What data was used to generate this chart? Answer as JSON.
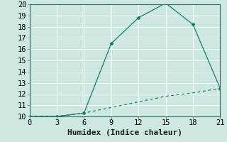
{
  "title": "",
  "xlabel": "Humidex (Indice chaleur)",
  "bg_color": "#cce8e0",
  "grid_color": "#ffffff",
  "line_color": "#1a7a6e",
  "x_solid": [
    0,
    3,
    6,
    9,
    12,
    15,
    18,
    21
  ],
  "y_solid": [
    10,
    10,
    10.3,
    16.5,
    18.8,
    20.1,
    18.2,
    12.5
  ],
  "x_dashed": [
    0,
    3,
    6,
    9,
    12,
    15,
    18,
    21
  ],
  "y_dashed": [
    10,
    10,
    10.3,
    10.8,
    11.3,
    11.8,
    12.1,
    12.5
  ],
  "xlim": [
    0,
    21
  ],
  "ylim": [
    10,
    20
  ],
  "xticks": [
    0,
    3,
    6,
    9,
    12,
    15,
    18,
    21
  ],
  "yticks": [
    10,
    11,
    12,
    13,
    14,
    15,
    16,
    17,
    18,
    19,
    20
  ],
  "xlabel_fontsize": 8,
  "tick_fontsize": 7.5
}
